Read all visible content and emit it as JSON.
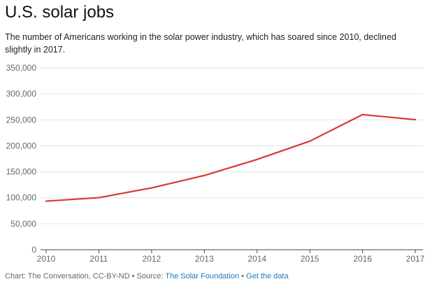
{
  "title": "U.S. solar jobs",
  "subtitle": "The number of Americans working in the solar power industry, which has soared since 2010, declined slightly in 2017.",
  "chart_data": {
    "type": "line",
    "title": "U.S. solar jobs",
    "x": [
      "2010",
      "2011",
      "2012",
      "2013",
      "2014",
      "2015",
      "2016",
      "2017"
    ],
    "series": [
      {
        "values": [
          93500,
          100200,
          119000,
          143000,
          173800,
          208900,
          260100,
          250300
        ],
        "color": "#d63a2f"
      }
    ],
    "ylim": [
      0,
      350000
    ],
    "yticks": [
      "0",
      "50,000",
      "100,000",
      "150,000",
      "200,000",
      "250,000",
      "300,000",
      "350,000"
    ],
    "grid": true,
    "legend": "none"
  },
  "footer": {
    "prefix": "Chart: The Conversation, CC-BY-ND • Source: ",
    "source_link": "The Solar Foundation",
    "separator": " • ",
    "data_link": "Get the data"
  }
}
